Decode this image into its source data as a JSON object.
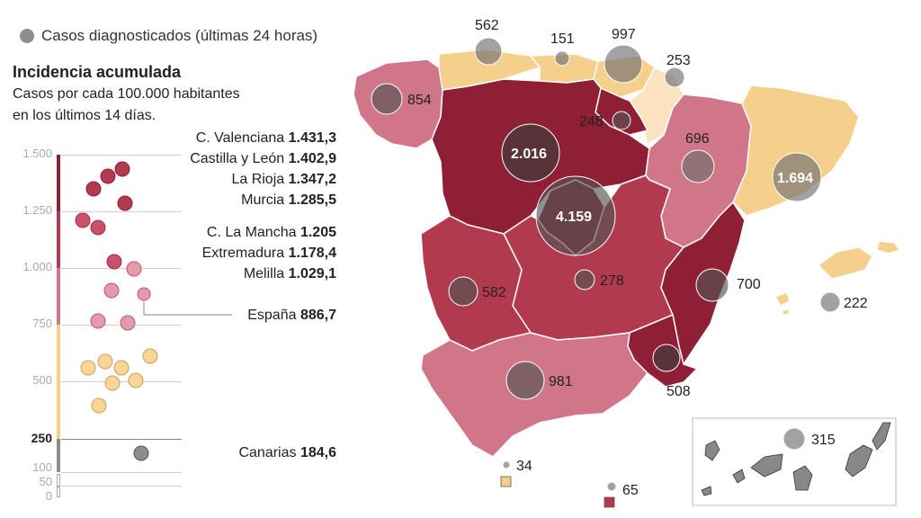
{
  "legend": {
    "bubble_label": "Casos diagnosticados (últimas 24 horas)"
  },
  "title": "Incidencia acumulada",
  "subtitle_1": "Casos por cada 100.000 habitantes",
  "subtitle_2": "en los últimos 14 días.",
  "scale_ticks": [
    "1.500",
    "1.250",
    "1.000",
    "750",
    "500",
    "250",
    "100",
    "50",
    "0"
  ],
  "colors": {
    "darkest": "#8e1f34",
    "dark": "#b23a4f",
    "medium": "#d17689",
    "light": "#f5cf8c",
    "lightest": "#fbe3c0",
    "gray": "#8d8d8d",
    "bubble": "#9a9a9a"
  },
  "rankings": [
    {
      "name": "C. Valenciana",
      "value": "1.431,3"
    },
    {
      "name": "Castilla y León",
      "value": "1.402,9"
    },
    {
      "name": "La Rioja",
      "value": "1.347,2"
    },
    {
      "name": "Murcia",
      "value": "1.285,5"
    },
    {
      "name": "C. La Mancha",
      "value": "1.205"
    },
    {
      "name": "Extremadura",
      "value": "1.178,4"
    },
    {
      "name": "Melilla",
      "value": "1.029,1"
    },
    {
      "name": "España",
      "value": "886,7"
    },
    {
      "name": "Canarias",
      "value": "184,6"
    }
  ],
  "map_cases": {
    "galicia": "854",
    "asturias": "562",
    "cantabria": "151",
    "pais_vasco": "997",
    "navarra": "253",
    "la_rioja": "248",
    "castilla_leon": "2.016",
    "aragon": "696",
    "cataluna": "1.694",
    "madrid": "4.159",
    "castilla_mancha": "278",
    "extremadura": "582",
    "valencia": "700",
    "baleares": "222",
    "andalucia": "981",
    "murcia": "508",
    "ceuta": "34",
    "melilla": "65",
    "canarias": "315"
  }
}
